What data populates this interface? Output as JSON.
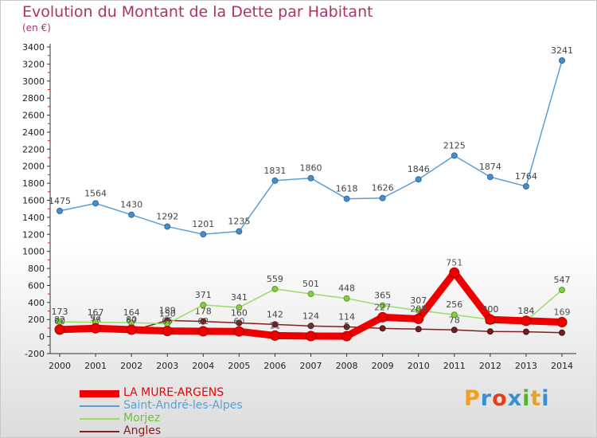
{
  "title": "Evolution du Montant de la Dette par Habitant",
  "unit": "(en €)",
  "logo_text": "Proxiti",
  "logo_colors": [
    "#f0a020",
    "#3a8fd0",
    "#e04020",
    "#3a8fd0",
    "#5ab030",
    "#f0a020",
    "#3a8fd0"
  ],
  "chart_data": {
    "type": "line",
    "x": [
      "2000",
      "2001",
      "2002",
      "2003",
      "2004",
      "2005",
      "2006",
      "2007",
      "2008",
      "2009",
      "2010",
      "2011",
      "2012",
      "2013",
      "2014"
    ],
    "ylim": [
      -200,
      3400
    ],
    "yticks": [
      -200,
      0,
      200,
      400,
      600,
      800,
      1000,
      1200,
      1400,
      1600,
      1800,
      2000,
      2200,
      2400,
      2600,
      2800,
      3000,
      3200,
      3400
    ],
    "grid": false,
    "legend_position": "bottom-left",
    "series": [
      {
        "name": "LA MURE-ARGENS",
        "color": "#ee0000",
        "values": [
          82,
          97,
          80,
          65,
          62,
          60,
          11,
          6,
          5,
          227,
          208,
          751,
          200,
          184,
          169
        ],
        "labels": [
          "82",
          "97",
          "80",
          "65",
          "62",
          "60",
          "11",
          "6",
          "5",
          "227",
          "208",
          "751",
          "200",
          "184",
          "169"
        ]
      },
      {
        "name": "Saint-André-les-Alpes",
        "color": "#5a9fd4",
        "values": [
          1475,
          1564,
          1430,
          1292,
          1201,
          1235,
          1831,
          1860,
          1618,
          1626,
          1846,
          2125,
          1874,
          1764,
          3241
        ],
        "labels": [
          "1475",
          "1564",
          "1430",
          "1292",
          "1201",
          "1235",
          "1831",
          "1860",
          "1618",
          "1626",
          "1846",
          "2125",
          "1874",
          "1764",
          "3241"
        ]
      },
      {
        "name": "Morjez",
        "color": "#99dd66",
        "values": [
          173,
          167,
          164,
          150,
          371,
          341,
          559,
          501,
          448,
          365,
          307,
          256,
          200,
          184,
          547
        ],
        "labels": [
          "173",
          "167",
          "164",
          "150",
          "371",
          "341",
          "559",
          "501",
          "448",
          "365",
          "307",
          "256",
          "200",
          "184",
          "547"
        ]
      },
      {
        "name": "Angles",
        "color": "#802020",
        "values": [
          60,
          78,
          67,
          189,
          178,
          160,
          142,
          124,
          114,
          96,
          87,
          78,
          60,
          56,
          45
        ],
        "labels": [
          "60",
          "78",
          "67",
          "189",
          "178",
          "160",
          "142",
          "124",
          "114",
          "96",
          "87",
          "78",
          "60",
          "56",
          "45"
        ]
      }
    ]
  }
}
